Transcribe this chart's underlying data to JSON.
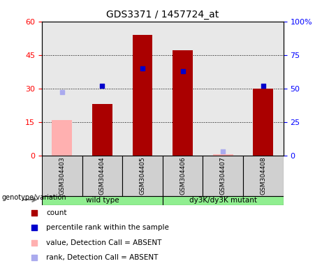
{
  "title": "GDS3371 / 1457724_at",
  "samples": [
    "GSM304403",
    "GSM304404",
    "GSM304405",
    "GSM304406",
    "GSM304407",
    "GSM304408"
  ],
  "count_values": [
    null,
    23,
    54,
    47,
    null,
    30
  ],
  "count_absent": [
    16,
    null,
    null,
    null,
    0.5,
    null
  ],
  "rank_values_pct": [
    null,
    52,
    65,
    63,
    null,
    52
  ],
  "rank_absent_pct": [
    47,
    null,
    null,
    null,
    3,
    null
  ],
  "ylim_left": [
    0,
    60
  ],
  "ylim_right": [
    0,
    100
  ],
  "yticks_left": [
    0,
    15,
    30,
    45,
    60
  ],
  "yticks_right": [
    0,
    25,
    50,
    75,
    100
  ],
  "yticklabels_right": [
    "0",
    "25",
    "50",
    "75",
    "100%"
  ],
  "group1_label": "wild type",
  "group2_label": "dy3K/dy3K mutant",
  "group1_indices": [
    0,
    1,
    2
  ],
  "group2_indices": [
    3,
    4,
    5
  ],
  "bar_color_present": "#AA0000",
  "bar_color_absent": "#FFB0B0",
  "dot_color_present": "#0000CC",
  "dot_color_absent": "#AAAAEE",
  "bar_width": 0.5,
  "group1_bg": "#90EE90",
  "group2_bg": "#90EE90",
  "plot_bg": "#E8E8E8",
  "sample_label_bg": "#D0D0D0",
  "legend_items": [
    {
      "label": "count",
      "color": "#AA0000"
    },
    {
      "label": "percentile rank within the sample",
      "color": "#0000CC"
    },
    {
      "label": "value, Detection Call = ABSENT",
      "color": "#FFB0B0"
    },
    {
      "label": "rank, Detection Call = ABSENT",
      "color": "#AAAAEE"
    }
  ]
}
